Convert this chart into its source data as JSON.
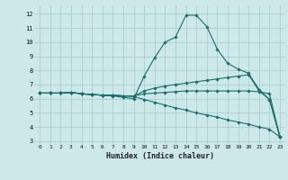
{
  "xlabel": "Humidex (Indice chaleur)",
  "background_color": "#cce8e8",
  "grid_color": "#aacece",
  "line_color": "#1a6e6a",
  "xlim": [
    -0.5,
    23.5
  ],
  "ylim": [
    2.8,
    12.6
  ],
  "xticks": [
    0,
    1,
    2,
    3,
    4,
    5,
    6,
    7,
    8,
    9,
    10,
    11,
    12,
    13,
    14,
    15,
    16,
    17,
    18,
    19,
    20,
    21,
    22,
    23
  ],
  "yticks": [
    3,
    4,
    5,
    6,
    7,
    8,
    9,
    10,
    11,
    12
  ],
  "series": [
    {
      "x": [
        0,
        1,
        2,
        3,
        4,
        5,
        6,
        7,
        8,
        9,
        10,
        11,
        12,
        13,
        14,
        15,
        16,
        17,
        18,
        19,
        20,
        21,
        22,
        23
      ],
      "y": [
        6.4,
        6.4,
        6.4,
        6.45,
        6.35,
        6.3,
        6.25,
        6.2,
        6.1,
        6.0,
        7.6,
        8.9,
        10.0,
        10.35,
        11.9,
        11.9,
        11.1,
        9.5,
        8.5,
        8.1,
        7.8,
        6.65,
        5.95,
        3.3
      ]
    },
    {
      "x": [
        0,
        1,
        2,
        3,
        4,
        5,
        6,
        7,
        8,
        9,
        10,
        11,
        12,
        13,
        14,
        15,
        16,
        17,
        18,
        19,
        20,
        21,
        22,
        23
      ],
      "y": [
        6.4,
        6.4,
        6.4,
        6.45,
        6.35,
        6.3,
        6.25,
        6.25,
        6.2,
        6.2,
        6.55,
        6.75,
        6.9,
        7.0,
        7.1,
        7.2,
        7.3,
        7.4,
        7.5,
        7.6,
        7.7,
        6.55,
        5.95,
        3.3
      ]
    },
    {
      "x": [
        0,
        1,
        2,
        3,
        4,
        5,
        6,
        7,
        8,
        9,
        10,
        11,
        12,
        13,
        14,
        15,
        16,
        17,
        18,
        19,
        20,
        21,
        22,
        23
      ],
      "y": [
        6.4,
        6.4,
        6.4,
        6.45,
        6.35,
        6.3,
        6.25,
        6.25,
        6.2,
        6.2,
        6.35,
        6.4,
        6.45,
        6.5,
        6.55,
        6.55,
        6.55,
        6.55,
        6.55,
        6.55,
        6.55,
        6.5,
        6.35,
        3.3
      ]
    },
    {
      "x": [
        0,
        1,
        2,
        3,
        4,
        5,
        6,
        7,
        8,
        9,
        10,
        11,
        12,
        13,
        14,
        15,
        16,
        17,
        18,
        19,
        20,
        21,
        22,
        23
      ],
      "y": [
        6.4,
        6.4,
        6.4,
        6.45,
        6.35,
        6.3,
        6.25,
        6.25,
        6.2,
        6.15,
        5.95,
        5.75,
        5.55,
        5.35,
        5.2,
        5.0,
        4.85,
        4.7,
        4.5,
        4.35,
        4.2,
        4.0,
        3.85,
        3.3
      ]
    }
  ]
}
